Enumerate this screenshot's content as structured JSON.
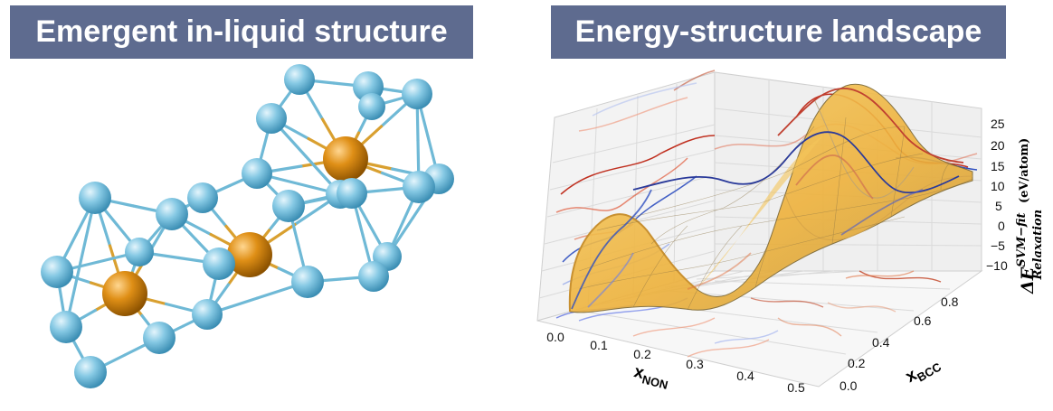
{
  "left_panel": {
    "title": "Emergent in-liquid structure",
    "colors": {
      "atom_blue": "#7dc3e0",
      "atom_orange": "#d98a10",
      "bond_blue": "#6fb9d6",
      "bond_orange": "#d9a030"
    }
  },
  "right_panel": {
    "title": "Energy-structure landscape",
    "chart_data": {
      "type": "surface-3d",
      "x_axis": {
        "label_main": "x",
        "label_sub": "NON",
        "ticks": [
          "0.0",
          "0.1",
          "0.2",
          "0.3",
          "0.4",
          "0.5"
        ],
        "range": [
          0.0,
          0.5
        ]
      },
      "y_axis": {
        "label_main": "x",
        "label_sub": "BCC",
        "ticks": [
          "0.0",
          "0.2",
          "0.4",
          "0.6",
          "0.8"
        ],
        "range": [
          0.0,
          0.85
        ]
      },
      "z_axis": {
        "label_main": "ΔE",
        "label_sup": "SVM−fit",
        "label_sub": "Relaxation",
        "label_unit": "(eV/atom)",
        "ticks": [
          "25",
          "20",
          "15",
          "10",
          "5",
          "0",
          "−5",
          "−10"
        ],
        "range": [
          -12,
          27
        ]
      },
      "grid": true,
      "colors": {
        "surface": "#f0b840",
        "surface_edge": "#6b5a2a",
        "contour_red": "#c03020",
        "contour_blue": "#3050c0"
      }
    }
  }
}
